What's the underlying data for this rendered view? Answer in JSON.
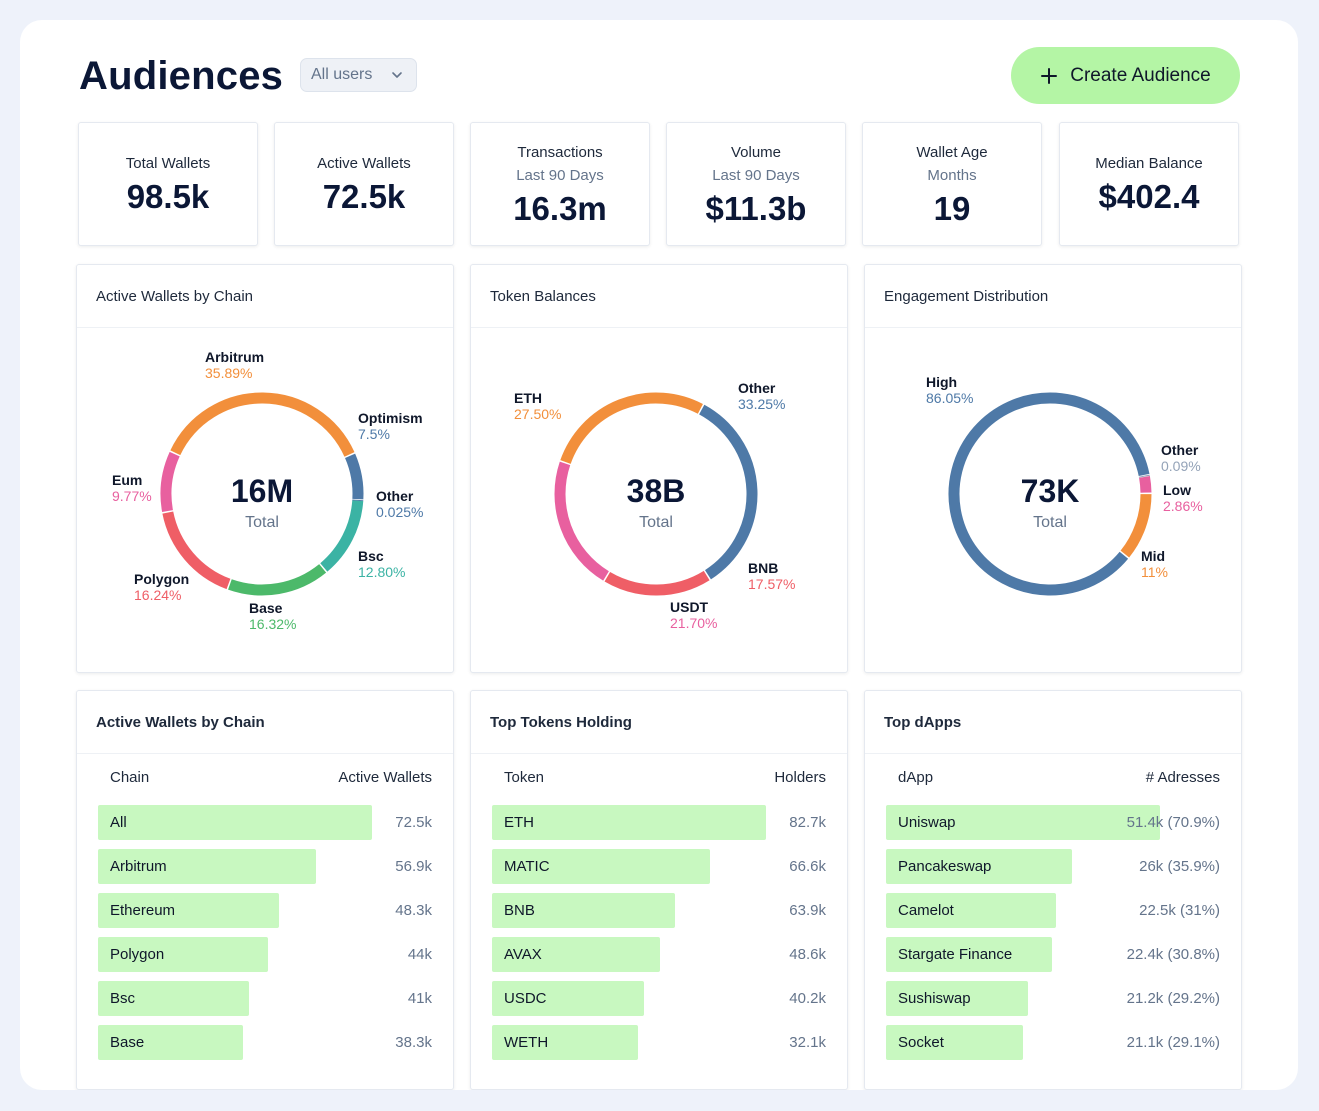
{
  "header": {
    "title": "Audiences",
    "filter_value": "All users",
    "create_label": "Create Audience"
  },
  "stats": [
    {
      "label": "Total Wallets",
      "sub": "",
      "value": "98.5k"
    },
    {
      "label": "Active Wallets",
      "sub": "",
      "value": "72.5k"
    },
    {
      "label": "Transactions",
      "sub": "Last 90 Days",
      "value": "16.3m"
    },
    {
      "label": "Volume",
      "sub": "Last 90 Days",
      "value": "$11.3b"
    },
    {
      "label": "Wallet Age",
      "sub": "Months",
      "value": "19"
    },
    {
      "label": "Median Balance",
      "sub": "",
      "value": "$402.4"
    }
  ],
  "colors": {
    "orange": "#f28f3b",
    "blue": "#4e79a7",
    "teal": "#3bb3a4",
    "green": "#4cb96a",
    "red": "#ef5e66",
    "pink": "#e8609f",
    "bar": "#c8f8c0",
    "accent": "#b4f5a5"
  },
  "chart_data": [
    {
      "type": "pie",
      "title": "Active Wallets by Chain",
      "center_value": "16M",
      "center_label": "Total",
      "slices": [
        {
          "name": "Arbitrum",
          "value": 35.89,
          "pct_label": "35.89%",
          "color": "#f28f3b"
        },
        {
          "name": "Optimism",
          "value": 7.5,
          "pct_label": "7.5%",
          "color": "#4e79a7"
        },
        {
          "name": "Other",
          "value": 0.025,
          "pct_label": "0.025%",
          "color": "#4e79a7"
        },
        {
          "name": "Bsc",
          "value": 12.8,
          "pct_label": "12.80%",
          "color": "#3bb3a4"
        },
        {
          "name": "Base",
          "value": 16.32,
          "pct_label": "16.32%",
          "color": "#4cb96a"
        },
        {
          "name": "Polygon",
          "value": 16.24,
          "pct_label": "16.24%",
          "color": "#ef5e66"
        },
        {
          "name": "Eum",
          "value": 9.77,
          "pct_label": "9.77%",
          "color": "#e8609f"
        }
      ]
    },
    {
      "type": "pie",
      "title": "Token Balances",
      "center_value": "38B",
      "center_label": "Total",
      "slices": [
        {
          "name": "Other",
          "value": 33.25,
          "pct_label": "33.25%",
          "color": "#4e79a7"
        },
        {
          "name": "BNB",
          "value": 17.57,
          "pct_label": "17.57%",
          "color": "#ef5e66"
        },
        {
          "name": "USDT",
          "value": 21.7,
          "pct_label": "21.70%",
          "color": "#e8609f"
        },
        {
          "name": "ETH",
          "value": 27.5,
          "pct_label": "27.50%",
          "color": "#f28f3b"
        }
      ]
    },
    {
      "type": "pie",
      "title": "Engagement Distribution",
      "center_value": "73K",
      "center_label": "Total",
      "slices": [
        {
          "name": "Other",
          "value": 0.09,
          "pct_label": "0.09%",
          "color": "#94a3b8"
        },
        {
          "name": "Low",
          "value": 2.86,
          "pct_label": "2.86%",
          "color": "#e8609f"
        },
        {
          "name": "Mid",
          "value": 11,
          "pct_label": "11%",
          "color": "#f28f3b"
        },
        {
          "name": "High",
          "value": 86.05,
          "pct_label": "86.05%",
          "color": "#4e79a7"
        }
      ]
    }
  ],
  "tables": [
    {
      "title": "Active Wallets by Chain",
      "col_left": "Chain",
      "col_right": "Active Wallets",
      "rows": [
        {
          "name": "All",
          "value": "72.5k",
          "fraction": 1.0
        },
        {
          "name": "Arbitrum",
          "value": "56.9k",
          "fraction": 0.795
        },
        {
          "name": "Ethereum",
          "value": "48.3k",
          "fraction": 0.659
        },
        {
          "name": "Polygon",
          "value": "44k",
          "fraction": 0.62
        },
        {
          "name": "Bsc",
          "value": "41k",
          "fraction": 0.55
        },
        {
          "name": "Base",
          "value": "38.3k",
          "fraction": 0.53
        }
      ]
    },
    {
      "title": "Top Tokens Holding",
      "col_left": "Token",
      "col_right": "Holders",
      "rows": [
        {
          "name": "ETH",
          "value": "82.7k",
          "fraction": 1.0
        },
        {
          "name": "MATIC",
          "value": "66.6k",
          "fraction": 0.795
        },
        {
          "name": "BNB",
          "value": "63.9k",
          "fraction": 0.668
        },
        {
          "name": "AVAX",
          "value": "48.6k",
          "fraction": 0.613
        },
        {
          "name": "USDC",
          "value": "40.2k",
          "fraction": 0.555
        },
        {
          "name": "WETH",
          "value": "32.1k",
          "fraction": 0.533
        }
      ]
    },
    {
      "title": "Top dApps",
      "col_left": "dApp",
      "col_right": "# Adresses",
      "rows": [
        {
          "name": "Uniswap",
          "value": "51.4k (70.9%)",
          "fraction": 1.0
        },
        {
          "name": "Pancakeswap",
          "value": "26k (35.9%)",
          "fraction": 0.68
        },
        {
          "name": "Camelot",
          "value": "22.5k (31%)",
          "fraction": 0.62
        },
        {
          "name": "Stargate Finance",
          "value": "22.4k (30.8%)",
          "fraction": 0.605
        },
        {
          "name": "Sushiswap",
          "value": "21.2k (29.2%)",
          "fraction": 0.52
        },
        {
          "name": "Socket",
          "value": "21.1k (29.1%)",
          "fraction": 0.5
        }
      ]
    }
  ]
}
